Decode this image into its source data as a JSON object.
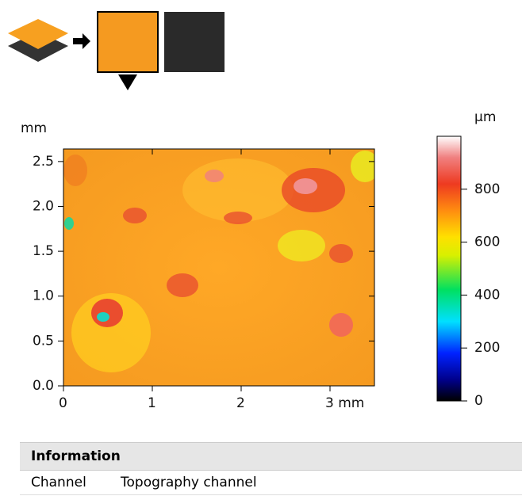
{
  "chart_data": {
    "type": "heatmap",
    "y_unit": "mm",
    "xlim": [
      0,
      3.5
    ],
    "xticks": [
      0,
      1,
      2,
      {
        "value": 3,
        "label": "3 mm"
      }
    ],
    "ylim": [
      0,
      2.64
    ],
    "yticks": [
      {
        "value": 0,
        "label": "0.0"
      },
      {
        "value": 0.5,
        "label": "0.5"
      },
      {
        "value": 1,
        "label": "1.0"
      },
      {
        "value": 1.5,
        "label": "1.5"
      },
      {
        "value": 2,
        "label": "2.0"
      },
      {
        "value": 2.5,
        "label": "2.5"
      }
    ],
    "colorbar": {
      "unit": "µm",
      "lim": [
        0,
        1000
      ],
      "ticks": [
        0,
        200,
        400,
        600,
        800
      ]
    }
  },
  "information": {
    "title": "Information",
    "rows": [
      [
        "Channel",
        "Topography channel"
      ]
    ]
  }
}
